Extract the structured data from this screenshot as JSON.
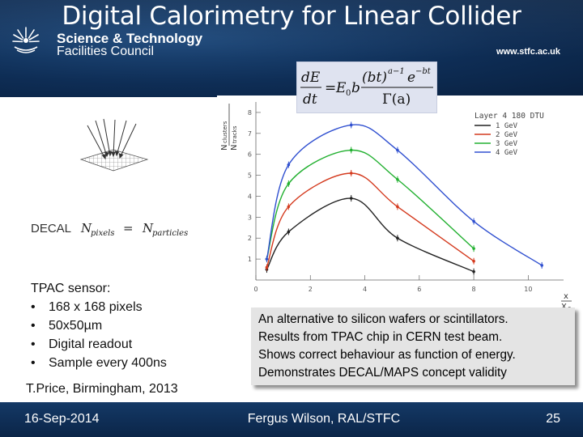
{
  "header": {
    "title": "Digital Calorimetry for Linear Collider",
    "org_line1": "Science & Technology",
    "org_line2": "Facilities Council",
    "url": "www.stfc.ac.uk"
  },
  "formula": {
    "lhs_num": "dE",
    "lhs_den": "dt",
    "e0b": "E",
    "sub0": "0",
    "b": "b",
    "num_expr": "(bt)",
    "num_exp": "a−1",
    "exp_e": "e",
    "exp_bt": "−bt",
    "den_expr": "Γ(a)"
  },
  "decal": {
    "label": "DECAL",
    "n1": "N",
    "sub1": "pixels",
    "eq": "=",
    "n2": "N",
    "sub2": "particles"
  },
  "tpac": {
    "heading": "TPAC sensor:",
    "bullets": [
      "168 x 168 pixels",
      "50x50µm",
      "Digital readout",
      "Sample every 400ns"
    ]
  },
  "credit": "T.Price, Birmingham, 2013",
  "caption": [
    "An alternative to silicon wafers or scintillators.",
    "Results from TPAC chip in CERN test beam.",
    "Shows correct behaviour as function of energy.",
    "Demonstrates DECAL/MAPS concept validity"
  ],
  "footer": {
    "date": "16-Sep-2014",
    "author": "Fergus Wilson, RAL/STFC",
    "page": "25"
  },
  "chart_data": {
    "type": "line",
    "legend_title": "Layer 4 180 DTU",
    "legend_position": "top-right",
    "ylabel_num": "N",
    "ylabel_num_sub": "clusters",
    "ylabel_den": "N",
    "ylabel_den_sub": "tracks",
    "xlabel_num": "x",
    "xlabel_den": "X",
    "xlabel_den_sub": "0",
    "xlim": [
      0,
      11
    ],
    "ylim": [
      0,
      8.5
    ],
    "x_ticks": [
      0,
      2,
      4,
      6,
      8,
      10
    ],
    "y_ticks": [
      1,
      2,
      3,
      4,
      5,
      6,
      7,
      8
    ],
    "series": [
      {
        "name": "1 GeV",
        "color": "#222222",
        "x": [
          0.4,
          1.2,
          3.5,
          5.2,
          8.0
        ],
        "y": [
          0.5,
          2.3,
          3.9,
          2.0,
          0.4
        ]
      },
      {
        "name": "2 GeV",
        "color": "#d43a1e",
        "x": [
          0.4,
          1.2,
          3.5,
          5.2,
          8.0
        ],
        "y": [
          0.6,
          3.5,
          5.1,
          3.5,
          0.9
        ]
      },
      {
        "name": "3 GeV",
        "color": "#22b030",
        "x": [
          0.4,
          1.2,
          3.5,
          5.2,
          8.0
        ],
        "y": [
          1.0,
          4.6,
          6.2,
          4.8,
          1.5
        ]
      },
      {
        "name": "4 GeV",
        "color": "#3050d0",
        "x": [
          0.4,
          1.2,
          3.5,
          5.2,
          8.0,
          10.5
        ],
        "y": [
          1.0,
          5.5,
          7.4,
          6.2,
          2.8,
          0.7
        ]
      }
    ]
  }
}
